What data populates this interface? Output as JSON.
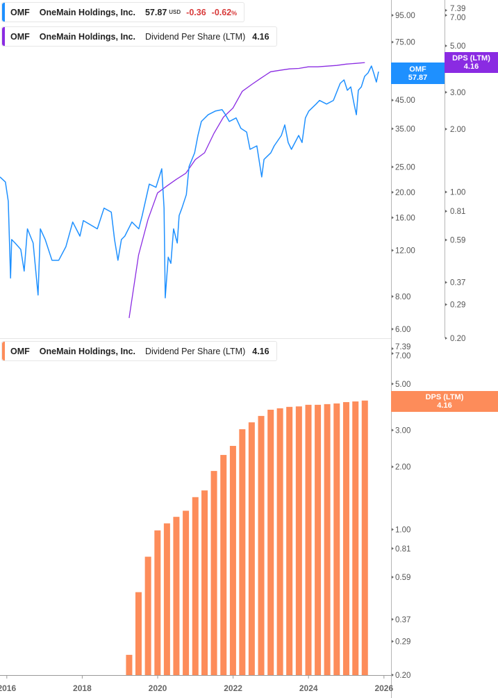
{
  "legend_price": {
    "ticker": "OMF",
    "name": "OneMain Holdings, Inc.",
    "price": "57.87",
    "currency": "USD",
    "change": "-0.36",
    "change_pct": "-0.62",
    "pct_sign": "%",
    "color": "#1e90ff"
  },
  "legend_dps_top": {
    "ticker": "OMF",
    "name": "OneMain Holdings, Inc.",
    "metric": "Dividend Per Share (LTM)",
    "value": "4.16",
    "color": "#8a2be2"
  },
  "legend_dps_bottom": {
    "ticker": "OMF",
    "name": "OneMain Holdings, Inc.",
    "metric": "Dividend Per Share (LTM)",
    "value": "4.16",
    "color": "#fd8c5a"
  },
  "tags": {
    "price": {
      "label": "OMF",
      "value": "57.87"
    },
    "dps_top": {
      "label": "DPS (LTM)",
      "value": "4.16"
    },
    "dps_bottom": {
      "label": "DPS (LTM)",
      "value": "4.16"
    }
  },
  "chart_data": [
    {
      "type": "line",
      "scale": "log",
      "price_axis_ticks": [
        "95.00",
        "75.00",
        "45.00",
        "35.00",
        "25.00",
        "20.00",
        "16.00",
        "12.00",
        "8.00",
        "6.00"
      ],
      "dps_axis_ticks": [
        "7.39",
        "7.00",
        "5.00",
        "3.00",
        "2.00",
        "1.00",
        "0.81",
        "0.59",
        "0.37",
        "0.29",
        "0.20"
      ],
      "series": [
        {
          "name": "OMF",
          "color": "#1e90ff",
          "axis": "price",
          "points": [
            [
              "2015-10-27",
              22.9
            ],
            [
              "2015-12-19",
              21.9
            ],
            [
              "2016-01-15",
              18.5
            ],
            [
              "2016-02-06",
              9.4
            ],
            [
              "2016-02-17",
              13.2
            ],
            [
              "2016-03-21",
              12.8
            ],
            [
              "2016-05-15",
              12.1
            ],
            [
              "2016-06-17",
              10.0
            ],
            [
              "2016-07-19",
              14.5
            ],
            [
              "2016-09-12",
              12.8
            ],
            [
              "2016-10-30",
              8.1
            ],
            [
              "2016-11-21",
              14.5
            ],
            [
              "2017-01-08",
              13.2
            ],
            [
              "2017-03-14",
              11.0
            ],
            [
              "2017-05-19",
              11.0
            ],
            [
              "2017-07-27",
              12.4
            ],
            [
              "2017-10-01",
              15.4
            ],
            [
              "2017-12-10",
              13.6
            ],
            [
              "2018-01-12",
              15.6
            ],
            [
              "2018-05-27",
              14.5
            ],
            [
              "2018-07-31",
              17.4
            ],
            [
              "2018-10-09",
              16.8
            ],
            [
              "2018-11-10",
              13.2
            ],
            [
              "2018-12-13",
              11.0
            ],
            [
              "2019-01-15",
              13.2
            ],
            [
              "2019-02-17",
              13.6
            ],
            [
              "2019-04-27",
              15.4
            ],
            [
              "2019-07-02",
              14.5
            ],
            [
              "2019-08-04",
              16.3
            ],
            [
              "2019-10-12",
              21.5
            ],
            [
              "2019-12-16",
              20.9
            ],
            [
              "2020-02-10",
              24.6
            ],
            [
              "2020-03-03",
              17.4
            ],
            [
              "2020-03-14",
              7.9
            ],
            [
              "2020-04-12",
              11.3
            ],
            [
              "2020-05-08",
              10.7
            ],
            [
              "2020-06-03",
              14.5
            ],
            [
              "2020-07-09",
              12.8
            ],
            [
              "2020-07-27",
              16.3
            ],
            [
              "2020-08-23",
              17.4
            ],
            [
              "2020-10-05",
              19.6
            ],
            [
              "2020-10-31",
              25.1
            ],
            [
              "2020-12-24",
              28.3
            ],
            [
              "2021-01-26",
              33.0
            ],
            [
              "2021-02-28",
              37.3
            ],
            [
              "2021-05-05",
              39.6
            ],
            [
              "2021-07-13",
              40.9
            ],
            [
              "2021-09-17",
              41.4
            ],
            [
              "2021-10-20",
              39.6
            ],
            [
              "2021-11-25",
              37.3
            ],
            [
              "2022-01-30",
              38.5
            ],
            [
              "2022-03-18",
              35.1
            ],
            [
              "2022-05-12",
              34.0
            ],
            [
              "2022-06-14",
              29.2
            ],
            [
              "2022-08-19",
              30.1
            ],
            [
              "2022-10-05",
              22.9
            ],
            [
              "2022-10-27",
              26.7
            ],
            [
              "2023-01-01",
              28.3
            ],
            [
              "2023-02-03",
              30.1
            ],
            [
              "2023-04-13",
              33.0
            ],
            [
              "2023-05-16",
              36.2
            ],
            [
              "2023-06-18",
              31.0
            ],
            [
              "2023-07-20",
              29.2
            ],
            [
              "2023-09-28",
              33.0
            ],
            [
              "2023-10-31",
              31.0
            ],
            [
              "2023-12-02",
              38.5
            ],
            [
              "2024-01-04",
              40.9
            ],
            [
              "2024-03-14",
              43.5
            ],
            [
              "2024-04-16",
              44.9
            ],
            [
              "2024-06-24",
              43.5
            ],
            [
              "2024-08-29",
              44.9
            ],
            [
              "2024-11-03",
              52.2
            ],
            [
              "2024-12-10",
              53.8
            ],
            [
              "2025-01-12",
              49.1
            ],
            [
              "2025-02-14",
              50.6
            ],
            [
              "2025-03-18",
              43.5
            ],
            [
              "2025-04-09",
              39.6
            ],
            [
              "2025-04-28",
              49.1
            ],
            [
              "2025-05-27",
              50.6
            ],
            [
              "2025-06-28",
              55.5
            ],
            [
              "2025-07-31",
              57.2
            ],
            [
              "2025-09-02",
              60.8
            ],
            [
              "2025-09-24",
              57.2
            ],
            [
              "2025-10-20",
              52.8
            ],
            [
              "2025-11-10",
              57.87
            ]
          ]
        },
        {
          "name": "DPS (LTM)",
          "color": "#8a2be2",
          "axis": "dps",
          "source": "dps_quarterly"
        }
      ]
    },
    {
      "type": "bar",
      "scale": "log",
      "name": "DPS (LTM)",
      "color": "#fd8c5a",
      "y_axis_ticks": [
        "7.39",
        "7.00",
        "5.00",
        "3.00",
        "2.00",
        "1.00",
        "0.81",
        "0.59",
        "0.37",
        "0.29",
        "0.20"
      ],
      "x_axis_ticks": [
        "2016",
        "2018",
        "2020",
        "2022",
        "2024",
        "2026"
      ],
      "dates": [
        "2019-03-31",
        "2019-06-30",
        "2019-09-30",
        "2019-12-31",
        "2020-03-31",
        "2020-06-30",
        "2020-09-30",
        "2020-12-31",
        "2021-03-31",
        "2021-06-30",
        "2021-09-30",
        "2021-12-31",
        "2022-03-31",
        "2022-06-30",
        "2022-09-30",
        "2022-12-31",
        "2023-03-31",
        "2023-06-30",
        "2023-09-30",
        "2023-12-31",
        "2024-03-31",
        "2024-06-30",
        "2024-09-30",
        "2024-12-31",
        "2025-03-31",
        "2025-06-30"
      ],
      "values": [
        0.25,
        0.5,
        0.74,
        0.99,
        1.07,
        1.15,
        1.23,
        1.43,
        1.54,
        1.91,
        2.28,
        2.52,
        3.03,
        3.27,
        3.51,
        3.76,
        3.82,
        3.88,
        3.9,
        3.97,
        3.97,
        4.0,
        4.03,
        4.09,
        4.12,
        4.16
      ]
    }
  ]
}
